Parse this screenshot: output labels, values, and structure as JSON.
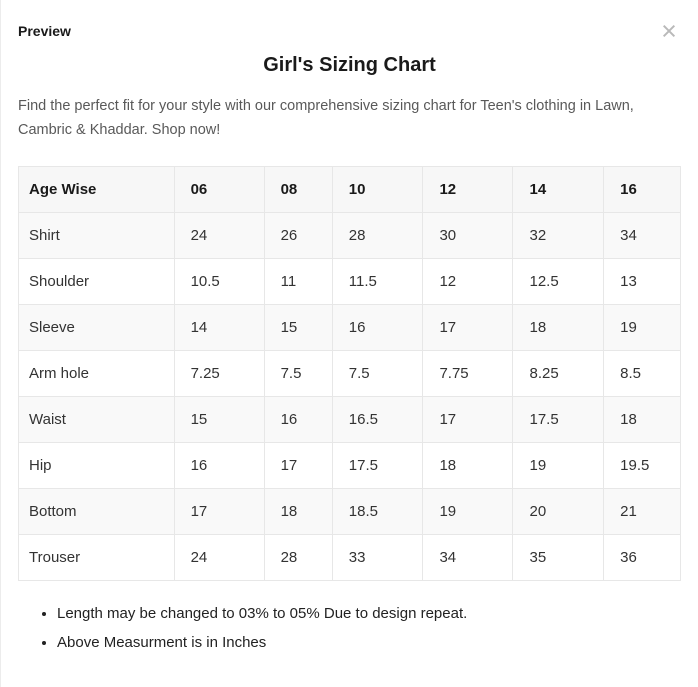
{
  "modal": {
    "title": "Preview",
    "close_icon": "×"
  },
  "content": {
    "heading": "Girl's Sizing Chart",
    "description": "Find the perfect fit for your style with our comprehensive sizing chart for Teen's clothing in Lawn, Cambric & Khaddar. Shop now!",
    "notes": [
      "Length may be changed to 03% to 05% Due to design repeat.",
      "Above Measurment is in Inches"
    ]
  },
  "sizing_table": {
    "columns": [
      "Age Wise",
      "06",
      "08",
      "10",
      "12",
      "14",
      "16"
    ],
    "rows": [
      {
        "label": "Shirt",
        "values": [
          "24",
          "26",
          "28",
          "30",
          "32",
          "34"
        ]
      },
      {
        "label": "Shoulder",
        "values": [
          "10.5",
          "11",
          "11.5",
          "12",
          "12.5",
          "13"
        ]
      },
      {
        "label": "Sleeve",
        "values": [
          "14",
          "15",
          "16",
          "17",
          "18",
          "19"
        ]
      },
      {
        "label": "Arm hole",
        "values": [
          "7.25",
          "7.5",
          "7.5",
          "7.75",
          "8.25",
          "8.5"
        ]
      },
      {
        "label": "Waist",
        "values": [
          "15",
          "16",
          "16.5",
          "17",
          "17.5",
          "18"
        ]
      },
      {
        "label": "Hip",
        "values": [
          "16",
          "17",
          "17.5",
          "18",
          "19",
          "19.5"
        ]
      },
      {
        "label": "Bottom",
        "values": [
          "17",
          "18",
          "18.5",
          "19",
          "20",
          "21"
        ]
      },
      {
        "label": "Trouser",
        "values": [
          "24",
          "28",
          "33",
          "34",
          "35",
          "36"
        ]
      }
    ]
  },
  "colors": {
    "header_bg": "#f7f7f7",
    "stripe_bg": "#f9f9f9",
    "border": "#e7e7e7",
    "heading_text": "#1a1a1a",
    "body_text": "#333333",
    "description_text": "#595959",
    "close_icon": "#b9b9b9"
  }
}
